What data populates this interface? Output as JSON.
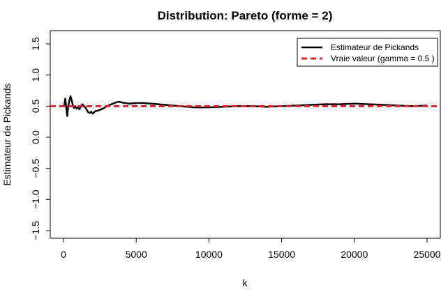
{
  "chart_data": {
    "type": "line",
    "title": "Distribution: Pareto (forme = 2)",
    "xlabel": "k",
    "ylabel": "Estimateur de Pickands",
    "xlim": [
      -1000,
      26000
    ],
    "ylim": [
      -1.5,
      1.5
    ],
    "x_ticks": [
      0,
      5000,
      10000,
      15000,
      20000,
      25000
    ],
    "x_tick_labels": [
      "0",
      "5000",
      "10000",
      "15000",
      "20000",
      "25000"
    ],
    "y_ticks": [
      -1.5,
      -1.0,
      -0.5,
      0.0,
      0.5,
      1.0,
      1.5
    ],
    "y_tick_labels": [
      "−1.5",
      "−1.0",
      "−0.5",
      "0.0",
      "0.5",
      "1.0",
      "1.5"
    ],
    "grid": false,
    "legend_position": "top-right",
    "series": [
      {
        "name": "Estimateur de Pickands",
        "color": "#000000",
        "style": "solid",
        "x": [
          50,
          120,
          200,
          260,
          320,
          400,
          480,
          560,
          640,
          720,
          800,
          900,
          1000,
          1100,
          1200,
          1300,
          1400,
          1500,
          1600,
          1700,
          1800,
          1900,
          2000,
          2200,
          2400,
          2600,
          2800,
          3000,
          3200,
          3400,
          3600,
          3800,
          4000,
          4500,
          5000,
          5500,
          6000,
          7000,
          8000,
          9000,
          10000,
          11000,
          12000,
          13000,
          14000,
          15000,
          16000,
          17000,
          18000,
          19000,
          20000,
          21000,
          22000,
          23000,
          24000,
          25000
        ],
        "values": [
          0.5,
          0.62,
          0.45,
          0.34,
          0.5,
          0.58,
          0.66,
          0.6,
          0.52,
          0.47,
          0.5,
          0.46,
          0.48,
          0.45,
          0.5,
          0.53,
          0.5,
          0.48,
          0.44,
          0.4,
          0.39,
          0.41,
          0.38,
          0.42,
          0.43,
          0.45,
          0.47,
          0.5,
          0.52,
          0.54,
          0.56,
          0.57,
          0.56,
          0.54,
          0.55,
          0.55,
          0.54,
          0.52,
          0.5,
          0.48,
          0.48,
          0.49,
          0.5,
          0.5,
          0.49,
          0.5,
          0.51,
          0.52,
          0.53,
          0.53,
          0.54,
          0.53,
          0.52,
          0.51,
          0.5,
          0.51
        ]
      },
      {
        "name": "Vraie valeur (gamma = 0.5 )",
        "color": "#e6202a",
        "style": "dashed",
        "x": [
          -1000,
          26000
        ],
        "values": [
          0.5,
          0.5
        ]
      }
    ]
  }
}
